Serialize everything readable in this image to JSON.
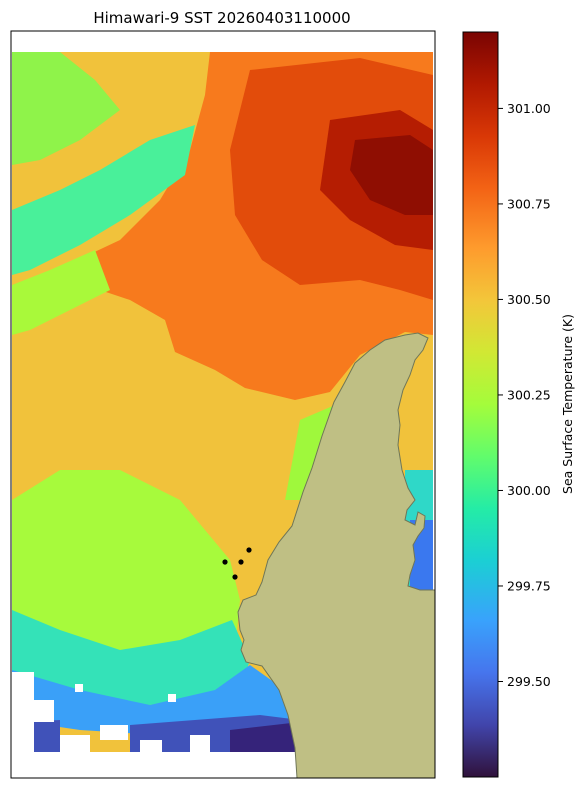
{
  "chart_data": {
    "type": "heatmap",
    "title": "Himawari-9 SST 20260403110000",
    "colorbar": {
      "label": "Sea Surface Temperature (K)",
      "ticks": [
        "299.50",
        "299.75",
        "300.00",
        "300.25",
        "300.50",
        "300.75",
        "301.00"
      ],
      "range": [
        299.25,
        301.2
      ],
      "colormap": "turbo"
    },
    "map": {
      "land_color": "#bfbf84",
      "coast_color": "#6f7657",
      "missing_color": "#ffffff",
      "station_markers": 4
    }
  }
}
